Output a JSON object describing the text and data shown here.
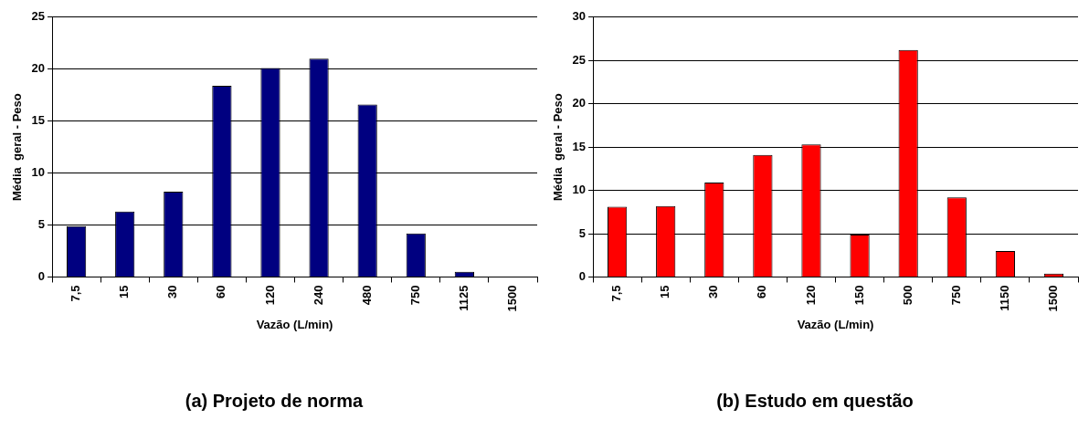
{
  "chart_data": [
    {
      "type": "bar",
      "title": "(a) Projeto de norma",
      "xlabel": "Vazão (L/min)",
      "ylabel": "Média  geral - Peso",
      "categories": [
        "7,5",
        "15",
        "30",
        "60",
        "120",
        "240",
        "480",
        "750",
        "1125",
        "1500"
      ],
      "values": [
        4.9,
        6.3,
        8.2,
        18.4,
        20.1,
        21.0,
        16.6,
        4.2,
        0.5,
        0
      ],
      "color": "#000080",
      "ylim": [
        0,
        25
      ],
      "yticks": [
        0,
        5,
        10,
        15,
        20,
        25
      ],
      "grid": "y"
    },
    {
      "type": "bar",
      "title": "(b) Estudo em questão",
      "xlabel": "Vazão (L/min)",
      "ylabel": "Média  geral - Peso",
      "categories": [
        "7,5",
        "15",
        "30",
        "60",
        "120",
        "150",
        "500",
        "750",
        "1150",
        "1500"
      ],
      "values": [
        8.1,
        8.2,
        10.9,
        14.1,
        15.3,
        4.9,
        26.2,
        9.2,
        3.0,
        0.4
      ],
      "color": "#ff0000",
      "ylim": [
        0,
        30
      ],
      "yticks": [
        0,
        5,
        10,
        15,
        20,
        25,
        30
      ],
      "grid": "y"
    }
  ]
}
